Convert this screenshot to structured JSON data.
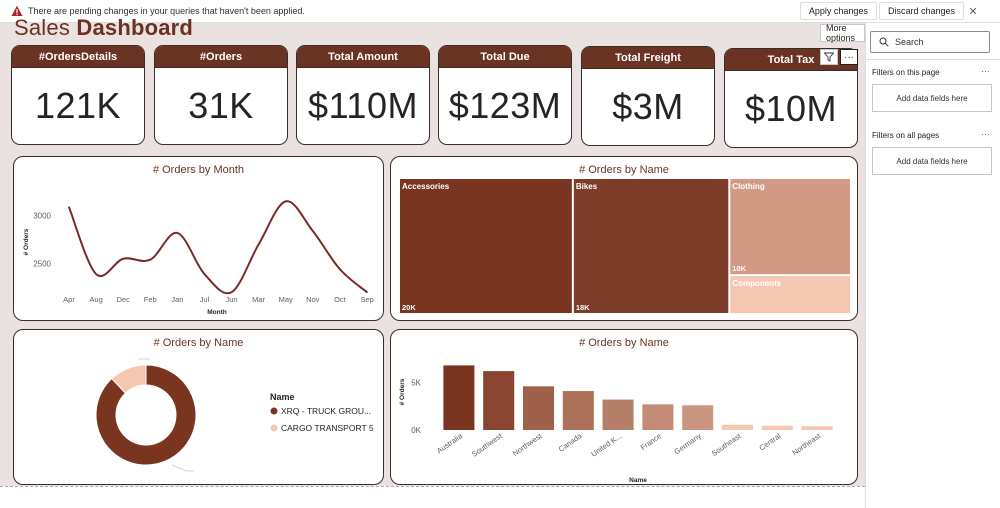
{
  "warning": {
    "text": "There are pending changes in your queries that haven't been applied.",
    "apply_label": "Apply changes",
    "discard_label": "Discard changes",
    "close": "✕"
  },
  "page": {
    "title_light": "Sales ",
    "title_bold": "Dashboard"
  },
  "kpis": [
    {
      "label": "#OrdersDetails",
      "value": "121K"
    },
    {
      "label": "#Orders",
      "value": "31K"
    },
    {
      "label": "Total Amount",
      "value": "$110M"
    },
    {
      "label": "Total Due",
      "value": "$123M"
    },
    {
      "label": "Total Freight",
      "value": "$3M"
    },
    {
      "label": "Total Tax",
      "value": "$10M"
    }
  ],
  "visual_header": {
    "tooltip": "More options",
    "filter_icon": "filter-icon",
    "more_icon": "more-options-icon",
    "more_glyph": "···"
  },
  "filters": {
    "search_placeholder": "Search",
    "on_this_page": "Filters on this page",
    "on_all_pages": "Filters on all pages",
    "add_fields": "Add data fields here",
    "more_glyph": "···"
  },
  "colors": {
    "accent": "#6b3321",
    "dark": "#7a3520",
    "mid": "#a0614a",
    "light": "#d29a85",
    "lightest": "#f5c7b0",
    "canvas": "#e9e2e0"
  },
  "chart_data": [
    {
      "type": "line",
      "title": "# Orders by Month",
      "xlabel": "Month",
      "ylabel": "# Orders",
      "categories": [
        "Apr",
        "Aug",
        "Dec",
        "Feb",
        "Jan",
        "Jul",
        "Jun",
        "Mar",
        "May",
        "Nov",
        "Oct",
        "Sep"
      ],
      "values": [
        3090,
        2390,
        2550,
        2540,
        2820,
        2390,
        2200,
        2700,
        3150,
        2840,
        2440,
        2200
      ],
      "yticks": [
        "3000",
        "2500"
      ],
      "ylim": [
        2150,
        3300
      ]
    },
    {
      "type": "treemap",
      "title": "# Orders by Name",
      "items": [
        {
          "name": "Accessories",
          "value": 20000,
          "label": "20K"
        },
        {
          "name": "Bikes",
          "value": 18000,
          "label": "18K"
        },
        {
          "name": "Clothing",
          "value": 10000,
          "label": "10K"
        },
        {
          "name": "Components",
          "value": 4000,
          "label": ""
        }
      ]
    },
    {
      "type": "pie",
      "title": "# Orders by Name",
      "legend_title": "Name",
      "items": [
        {
          "name": "XRQ - TRUCK GROU...",
          "value": 88
        },
        {
          "name": "CARGO TRANSPORT 5",
          "value": 12
        }
      ]
    },
    {
      "type": "bar",
      "title": "# Orders by Name",
      "xlabel": "Name",
      "ylabel": "# Orders",
      "categories": [
        "Australia",
        "Southwest",
        "Northwest",
        "Canada",
        "United K...",
        "France",
        "Germany",
        "Southeast",
        "Central",
        "Northeast"
      ],
      "values": [
        6800,
        6200,
        4600,
        4100,
        3200,
        2700,
        2600,
        550,
        450,
        400
      ],
      "yticks": [
        "5K",
        "0K"
      ],
      "ylim": [
        0,
        8000
      ]
    }
  ]
}
